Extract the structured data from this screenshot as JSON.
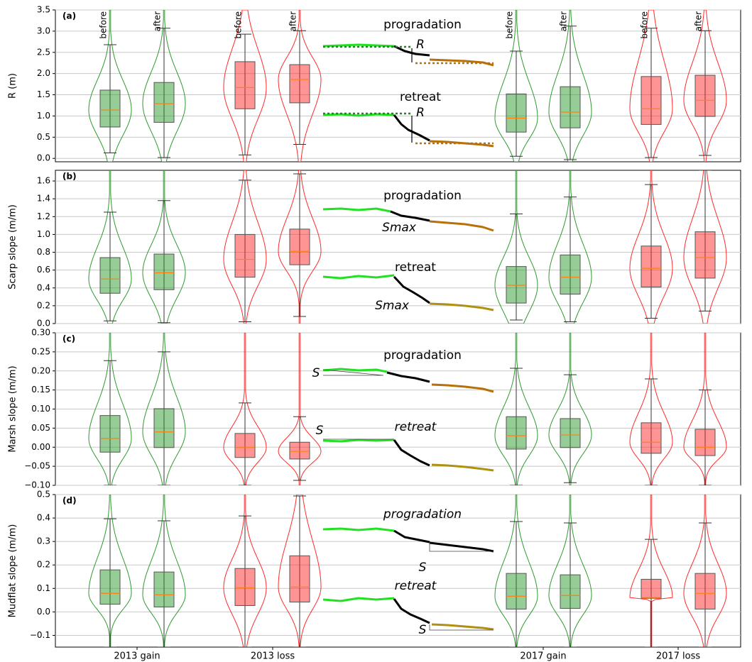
{
  "chart_data": [
    {
      "type": "violin",
      "panel_label": "(a)",
      "ylabel": "R (m)",
      "ylim": [
        -0.08,
        3.5
      ],
      "yticks": [
        {
          "value": 0,
          "label": "0.0"
        },
        0.5,
        {
          "value": 1,
          "label": "1.0"
        },
        1.5,
        {
          "value": 2,
          "label": "2.0"
        },
        2.5,
        {
          "value": 3,
          "label": "3.0"
        },
        3.5
      ],
      "grid": true,
      "median_color": "#ff7f0e",
      "group_labels": [
        "before",
        "after",
        "before",
        "after",
        "before",
        "after",
        "before",
        "after"
      ],
      "annotations": [
        "progradation",
        "R",
        "retreat",
        "R"
      ],
      "boxes": [
        {
          "color": "#2e9a2e",
          "whisker_low": 0.13,
          "q1": 0.74,
          "median": 1.14,
          "q3": 1.61,
          "whisker_high": 2.68
        },
        {
          "color": "#2e9a2e",
          "whisker_low": 0.02,
          "q1": 0.85,
          "median": 1.29,
          "q3": 1.79,
          "whisker_high": 3.07
        },
        {
          "color": "#ff2a2a",
          "whisker_low": 0.08,
          "q1": 1.17,
          "median": 1.67,
          "q3": 2.28,
          "whisker_high": 2.93
        },
        {
          "color": "#ff2a2a",
          "whisker_low": 0.33,
          "q1": 1.31,
          "median": 1.86,
          "q3": 2.21,
          "whisker_high": 3.01
        },
        {
          "color": "#2e9a2e",
          "whisker_low": 0.05,
          "q1": 0.62,
          "median": 0.95,
          "q3": 1.52,
          "whisker_high": 2.53
        },
        {
          "color": "#2e9a2e",
          "whisker_low": -0.03,
          "q1": 0.72,
          "median": 1.09,
          "q3": 1.69,
          "whisker_high": 3.12
        },
        {
          "color": "#ff2a2a",
          "whisker_low": 0.02,
          "q1": 0.8,
          "median": 1.17,
          "q3": 1.93,
          "whisker_high": 3.07
        },
        {
          "color": "#ff2a2a",
          "whisker_low": 0.07,
          "q1": 0.99,
          "median": 1.37,
          "q3": 1.96,
          "whisker_high": 3.01
        }
      ]
    },
    {
      "type": "violin",
      "panel_label": "(b)",
      "ylabel": "Scarp slope (m/m)",
      "ylim": [
        0,
        1.72
      ],
      "yticks": [
        {
          "value": 0,
          "label": "0.0"
        },
        0.2,
        0.4,
        0.6,
        0.8,
        {
          "value": 1,
          "label": "1.0"
        },
        1.2,
        1.4,
        1.6
      ],
      "grid": true,
      "median_color": "#ff7f0e",
      "annotations": [
        "progradation",
        "Smax",
        "retreat",
        "Smax"
      ],
      "boxes": [
        {
          "color": "#2e9a2e",
          "whisker_low": 0.03,
          "q1": 0.34,
          "median": 0.5,
          "q3": 0.74,
          "whisker_high": 1.25
        },
        {
          "color": "#2e9a2e",
          "whisker_low": 0.01,
          "q1": 0.38,
          "median": 0.57,
          "q3": 0.78,
          "whisker_high": 1.38
        },
        {
          "color": "#ff2a2a",
          "whisker_low": 0.02,
          "q1": 0.52,
          "median": 0.72,
          "q3": 1.0,
          "whisker_high": 1.61
        },
        {
          "color": "#ff2a2a",
          "whisker_low": 0.08,
          "q1": 0.66,
          "median": 0.81,
          "q3": 1.06,
          "whisker_high": 1.68
        },
        {
          "color": "#2e9a2e",
          "whisker_low": 0.04,
          "q1": 0.23,
          "median": 0.43,
          "q3": 0.64,
          "whisker_high": 1.23
        },
        {
          "color": "#2e9a2e",
          "whisker_low": 0.02,
          "q1": 0.33,
          "median": 0.52,
          "q3": 0.77,
          "whisker_high": 1.42
        },
        {
          "color": "#ff2a2a",
          "whisker_low": 0.06,
          "q1": 0.41,
          "median": 0.62,
          "q3": 0.87,
          "whisker_high": 1.56
        },
        {
          "color": "#ff2a2a",
          "whisker_low": 0.14,
          "q1": 0.51,
          "median": 0.74,
          "q3": 1.03,
          "whisker_high": 1.72
        }
      ]
    },
    {
      "type": "violin",
      "panel_label": "(c)",
      "ylabel": "Marsh slope (m/m)",
      "ylim": [
        -0.1,
        0.3
      ],
      "yticks": [
        {
          "value": -0.1,
          "label": "−0.10"
        },
        {
          "value": -0.05,
          "label": "−0.05"
        },
        {
          "value": 0,
          "label": "0.00"
        },
        0.05,
        {
          "value": 0.1,
          "label": "0.10"
        },
        0.15,
        {
          "value": 0.2,
          "label": "0.20"
        },
        0.25,
        {
          "value": 0.3,
          "label": "0.30"
        }
      ],
      "grid": true,
      "median_color": "#ff7f0e",
      "annotations": [
        "progradation",
        "S",
        "retreat",
        "S"
      ],
      "boxes": [
        {
          "color": "#2e9a2e",
          "whisker_low": -0.1,
          "q1": -0.013,
          "median": 0.023,
          "q3": 0.083,
          "whisker_high": 0.227
        },
        {
          "color": "#2e9a2e",
          "whisker_low": -0.1,
          "q1": -0.001,
          "median": 0.04,
          "q3": 0.101,
          "whisker_high": 0.25
        },
        {
          "color": "#ff2a2a",
          "whisker_low": -0.1,
          "q1": -0.027,
          "median": -0.001,
          "q3": 0.036,
          "whisker_high": 0.116
        },
        {
          "color": "#ff2a2a",
          "whisker_low": -0.087,
          "q1": -0.031,
          "median": -0.011,
          "q3": 0.013,
          "whisker_high": 0.08
        },
        {
          "color": "#2e9a2e",
          "whisker_low": -0.1,
          "q1": -0.005,
          "median": 0.03,
          "q3": 0.08,
          "whisker_high": 0.207
        },
        {
          "color": "#2e9a2e",
          "whisker_low": -0.093,
          "q1": -0.001,
          "median": 0.032,
          "q3": 0.075,
          "whisker_high": 0.19
        },
        {
          "color": "#ff2a2a",
          "whisker_low": -0.1,
          "q1": -0.016,
          "median": 0.013,
          "q3": 0.064,
          "whisker_high": 0.179
        },
        {
          "color": "#ff2a2a",
          "whisker_low": -0.1,
          "q1": -0.022,
          "median": 0.0,
          "q3": 0.047,
          "whisker_high": 0.15
        }
      ]
    },
    {
      "type": "violin",
      "panel_label": "(d)",
      "ylabel": "Mudflat slope (m/m)",
      "ylim": [
        -0.15,
        0.5
      ],
      "yticks": [
        {
          "value": -0.1,
          "label": "−0.1"
        },
        {
          "value": 0,
          "label": "0.0"
        },
        0.1,
        0.2,
        0.3,
        0.4,
        0.5
      ],
      "grid": true,
      "median_color": "#ff7f0e",
      "categories": [
        "2013 gain",
        "2013 loss",
        "2017 gain",
        "2017 loss"
      ],
      "annotations": [
        "progradation",
        "S",
        "retreat",
        "S"
      ],
      "boxes": [
        {
          "color": "#2e9a2e",
          "whisker_low": -0.15,
          "q1": 0.033,
          "median": 0.079,
          "q3": 0.179,
          "whisker_high": 0.397
        },
        {
          "color": "#2e9a2e",
          "whisker_low": -0.15,
          "q1": 0.021,
          "median": 0.073,
          "q3": 0.17,
          "whisker_high": 0.388
        },
        {
          "color": "#ff2a2a",
          "whisker_low": -0.15,
          "q1": 0.027,
          "median": 0.103,
          "q3": 0.185,
          "whisker_high": 0.409
        },
        {
          "color": "#ff2a2a",
          "whisker_low": -0.15,
          "q1": 0.042,
          "median": 0.106,
          "q3": 0.239,
          "whisker_high": 0.494
        },
        {
          "color": "#2e9a2e",
          "whisker_low": -0.15,
          "q1": 0.012,
          "median": 0.067,
          "q3": 0.164,
          "whisker_high": 0.385
        },
        {
          "color": "#2e9a2e",
          "whisker_low": -0.15,
          "q1": 0.015,
          "median": 0.07,
          "q3": 0.158,
          "whisker_high": 0.379
        },
        {
          "color": "#ff2a2a",
          "whisker_low": -0.15,
          "q1": 0.058,
          "median": 0.061,
          "q3": 0.139,
          "whisker_high": 0.309
        },
        {
          "color": "#ff2a2a",
          "whisker_low": -0.15,
          "q1": 0.012,
          "median": 0.079,
          "q3": 0.164,
          "whisker_high": 0.379
        }
      ]
    }
  ]
}
